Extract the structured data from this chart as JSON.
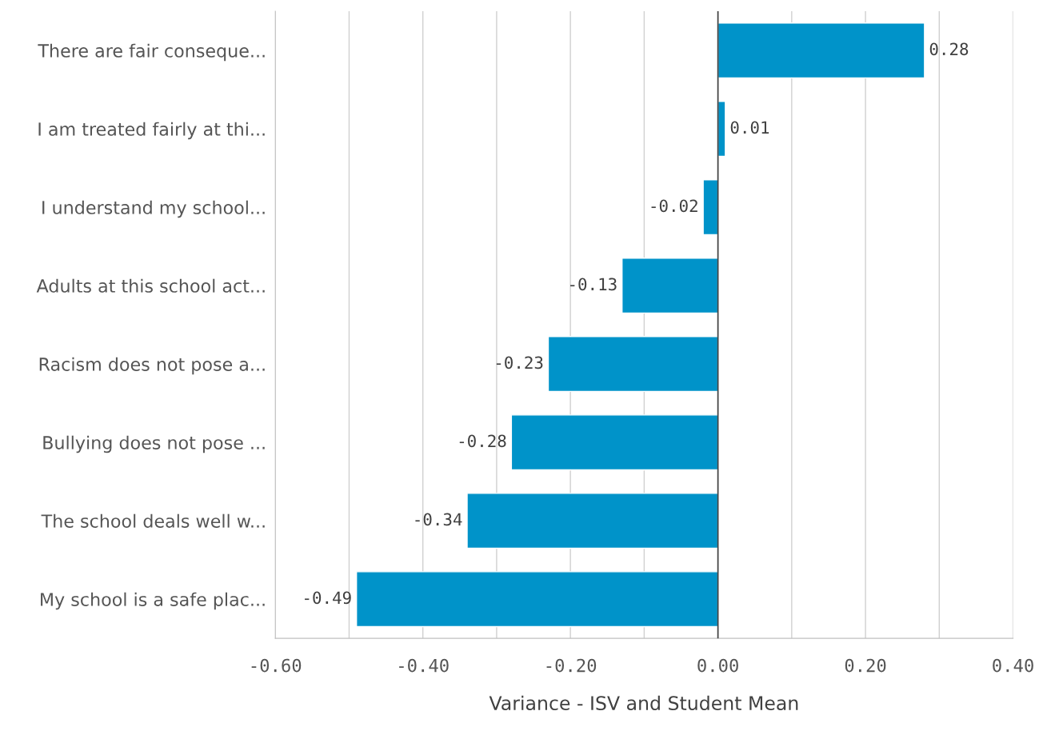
{
  "chart_data": {
    "type": "bar",
    "orientation": "horizontal",
    "xlabel": "Variance - ISV and Student Mean",
    "categories": [
      "There are fair conseque...",
      "I am treated fairly at thi...",
      "I understand my school...",
      "Adults at this school act...",
      "Racism does not pose a...",
      "Bullying does not pose ...",
      "The school deals well w...",
      "My school is a safe plac..."
    ],
    "values": [
      0.28,
      0.01,
      -0.02,
      -0.13,
      -0.23,
      -0.28,
      -0.34,
      -0.49
    ],
    "value_labels": [
      "0.28",
      "0.01",
      "-0.02",
      "-0.13",
      "-0.23",
      "-0.28",
      "-0.34",
      "-0.49"
    ],
    "color": "#0093c9",
    "xlim": [
      -0.6,
      0.4
    ],
    "xticks": [
      {
        "value": -0.6,
        "label": "-0.60"
      },
      {
        "value": -0.5,
        "label": null
      },
      {
        "value": -0.4,
        "label": "-0.40"
      },
      {
        "value": -0.3,
        "label": null
      },
      {
        "value": -0.2,
        "label": "-0.20"
      },
      {
        "value": -0.1,
        "label": null
      },
      {
        "value": 0,
        "label": "0.00"
      },
      {
        "value": 0.1,
        "label": null
      },
      {
        "value": 0.2,
        "label": "0.20"
      },
      {
        "value": 0.3,
        "label": null
      },
      {
        "value": 0.4,
        "label": "0.40"
      }
    ],
    "ref_lines": [
      {
        "axis": "x",
        "value": 0,
        "color": "#404040"
      }
    ],
    "grid": "x"
  }
}
